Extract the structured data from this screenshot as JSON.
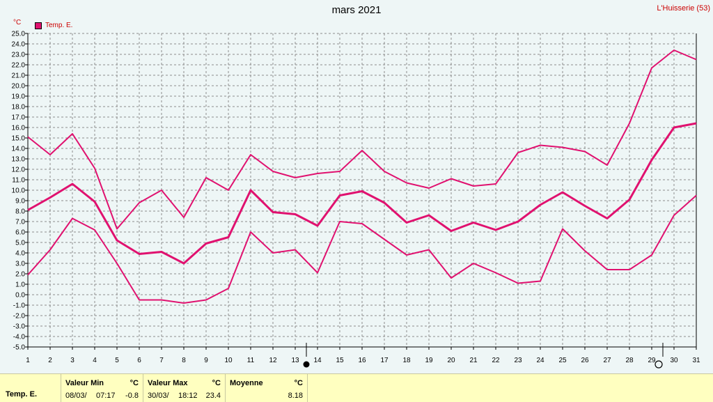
{
  "title": "mars 2021",
  "station": "L'Huisserie (53)",
  "unit": "°C",
  "legend": [
    {
      "label": "Temp. E.",
      "color": "#e0116f"
    }
  ],
  "colors": {
    "series": "#e0116f",
    "grid": "#8c8c8c",
    "axis": "#000000"
  },
  "moon_phases": [
    {
      "day": 13,
      "phase": "new-moon"
    },
    {
      "day": 29,
      "phase": "full-moon"
    }
  ],
  "chart_data": {
    "type": "line",
    "title": "mars 2021",
    "ylabel": "°C",
    "x": [
      1,
      2,
      3,
      4,
      5,
      6,
      7,
      8,
      9,
      10,
      11,
      12,
      13,
      14,
      15,
      16,
      17,
      18,
      19,
      20,
      21,
      22,
      23,
      24,
      25,
      26,
      27,
      28,
      29,
      30,
      31
    ],
    "ylim": [
      -5.0,
      25.0
    ],
    "ytick_step": 1.0,
    "grid": true,
    "legend_position": "top-left",
    "series": [
      {
        "name": "Temp. E.",
        "role": "max",
        "line": "thin",
        "values": [
          15.1,
          13.4,
          15.4,
          12.1,
          6.3,
          8.8,
          10.0,
          7.4,
          11.2,
          10.0,
          13.4,
          11.8,
          11.2,
          11.6,
          11.8,
          13.8,
          11.8,
          10.7,
          10.2,
          11.1,
          10.4,
          10.6,
          13.6,
          14.3,
          14.1,
          13.7,
          12.4,
          16.4,
          21.7,
          23.4,
          22.5
        ]
      },
      {
        "name": "Temp. E.",
        "role": "mean",
        "line": "thick",
        "values": [
          8.1,
          9.3,
          10.6,
          8.9,
          5.2,
          3.9,
          4.1,
          3.0,
          4.9,
          5.5,
          10.0,
          7.9,
          7.7,
          6.6,
          9.5,
          9.9,
          8.8,
          6.9,
          7.6,
          6.1,
          6.9,
          6.2,
          7.0,
          8.6,
          9.8,
          8.5,
          7.3,
          9.1,
          12.9,
          16.0,
          16.4
        ]
      },
      {
        "name": "Temp. E.",
        "role": "min",
        "line": "thin",
        "values": [
          1.9,
          4.3,
          7.3,
          6.2,
          3.0,
          -0.5,
          -0.5,
          -0.8,
          -0.5,
          0.6,
          6.0,
          4.0,
          4.3,
          2.1,
          7.0,
          6.8,
          5.3,
          3.8,
          4.3,
          1.6,
          3.0,
          2.1,
          1.1,
          1.3,
          6.3,
          4.2,
          2.4,
          2.4,
          3.8,
          7.6,
          9.5
        ]
      }
    ]
  },
  "stats": {
    "row_label": "Temp. E.",
    "min_header": "Valeur Min",
    "min_unit": "°C",
    "min_date": "08/03/",
    "min_time": "07:17",
    "min_value": "-0.8",
    "max_header": "Valeur Max",
    "max_unit": "°C",
    "max_date": "30/03/",
    "max_time": "18:12",
    "max_value": "23.4",
    "mean_header": "Moyenne",
    "mean_unit": "°C",
    "mean_value": "8.18"
  }
}
